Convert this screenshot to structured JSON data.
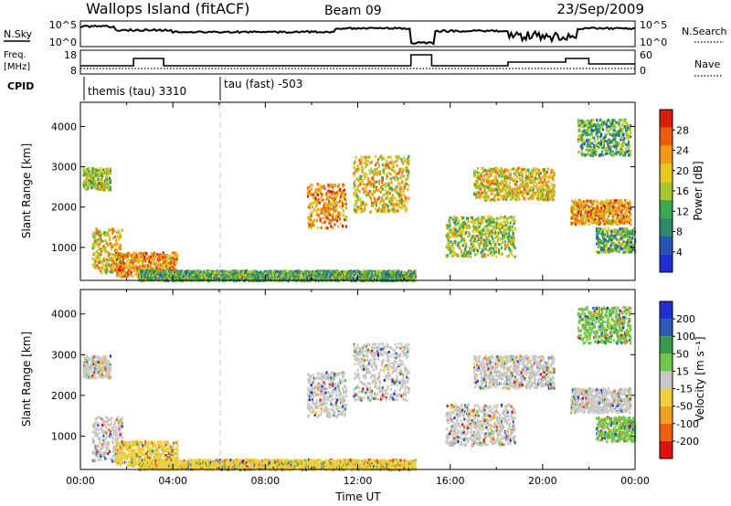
{
  "header": {
    "station": "Wallops Island (fitACF)",
    "beam": "Beam 09",
    "date": "23/Sep/2009"
  },
  "strip": {
    "nsky_label": "N.Sky",
    "nsearch_label": "N.Search",
    "noise_ticks_left": [
      "10^5",
      "10^0"
    ],
    "noise_ticks_right": [
      "10^5",
      "10^0"
    ],
    "freq_label_1": "Freq.",
    "freq_label_2": "[MHz]",
    "freq_ticks": [
      "18",
      "8"
    ],
    "nave_label": "Nave",
    "nave_ticks": [
      "60",
      "0"
    ],
    "cpid_label": "CPID",
    "cpid_modes": [
      "themis (tau) 3310",
      "tau (fast) -503"
    ]
  },
  "colors": {
    "power": [
      "#1f2fd6",
      "#2456b0",
      "#2e8a6a",
      "#3aa84e",
      "#a8c832",
      "#e8c81e",
      "#f09a18",
      "#ec5a10",
      "#d81e08"
    ],
    "velocity": [
      "#e01010",
      "#ec6010",
      "#f0a020",
      "#f0d040",
      "#c8c8c8",
      "#70c84a",
      "#3a9a4a",
      "#2a5ab4",
      "#2030d0"
    ]
  },
  "chart_data": [
    {
      "type": "heatmap",
      "quantity": "power",
      "xlabel": "",
      "ylabel": "Slant Range [km]",
      "xlim": [
        "00:00",
        "24:00"
      ],
      "ylim": [
        180,
        4600
      ],
      "y_ticks": [
        1000,
        2000,
        3000,
        4000
      ],
      "colorbar": {
        "label": "Power [dB]",
        "range": [
          0,
          32
        ],
        "ticks": [
          4,
          8,
          12,
          16,
          20,
          24,
          28
        ]
      },
      "echo_regions": [
        {
          "t_start": 0.1,
          "t_end": 1.3,
          "r_low": 2450,
          "r_high": 3000,
          "level": 16
        },
        {
          "t_start": 0.5,
          "t_end": 1.8,
          "r_low": 400,
          "r_high": 1500,
          "level": 20
        },
        {
          "t_start": 1.5,
          "t_end": 4.2,
          "r_low": 300,
          "r_high": 900,
          "level": 22
        },
        {
          "t_start": 2.5,
          "t_end": 14.5,
          "r_low": 200,
          "r_high": 450,
          "level": 10
        },
        {
          "t_start": 9.8,
          "t_end": 11.5,
          "r_low": 1500,
          "r_high": 2600,
          "level": 22
        },
        {
          "t_start": 11.8,
          "t_end": 14.2,
          "r_low": 1900,
          "r_high": 3300,
          "level": 18
        },
        {
          "t_start": 15.8,
          "t_end": 18.8,
          "r_low": 800,
          "r_high": 1800,
          "level": 16
        },
        {
          "t_start": 17.0,
          "t_end": 20.5,
          "r_low": 2200,
          "r_high": 3000,
          "level": 18
        },
        {
          "t_start": 21.2,
          "t_end": 23.8,
          "r_low": 1600,
          "r_high": 2200,
          "level": 22
        },
        {
          "t_start": 21.5,
          "t_end": 23.8,
          "r_low": 3300,
          "r_high": 4200,
          "level": 12
        },
        {
          "t_start": 22.3,
          "t_end": 24.0,
          "r_low": 900,
          "r_high": 1500,
          "level": 10
        }
      ]
    },
    {
      "type": "heatmap",
      "quantity": "velocity",
      "xlabel": "Time UT",
      "ylabel": "Slant Range [km]",
      "xlim": [
        "00:00",
        "24:00"
      ],
      "x_ticks": [
        "00:00",
        "04:00",
        "08:00",
        "12:00",
        "16:00",
        "20:00",
        "00:00"
      ],
      "ylim": [
        180,
        4600
      ],
      "y_ticks": [
        1000,
        2000,
        3000,
        4000
      ],
      "colorbar": {
        "label": "Velocity [m s⁻¹]",
        "ticks": [
          -200,
          -100,
          -50,
          -15,
          15,
          50,
          100,
          200
        ]
      },
      "echo_regions": [
        {
          "t_start": 0.1,
          "t_end": 1.3,
          "r_low": 2450,
          "r_high": 3000,
          "level": 0
        },
        {
          "t_start": 0.5,
          "t_end": 1.8,
          "r_low": 400,
          "r_high": 1500,
          "level": 0
        },
        {
          "t_start": 1.5,
          "t_end": 4.2,
          "r_low": 300,
          "r_high": 900,
          "level": 20
        },
        {
          "t_start": 2.5,
          "t_end": 14.5,
          "r_low": 200,
          "r_high": 450,
          "level": 20
        },
        {
          "t_start": 9.8,
          "t_end": 11.5,
          "r_low": 1500,
          "r_high": 2600,
          "level": 0
        },
        {
          "t_start": 11.8,
          "t_end": 14.2,
          "r_low": 1900,
          "r_high": 3300,
          "level": 0
        },
        {
          "t_start": 15.8,
          "t_end": 18.8,
          "r_low": 800,
          "r_high": 1800,
          "level": 0
        },
        {
          "t_start": 17.0,
          "t_end": 20.5,
          "r_low": 2200,
          "r_high": 3000,
          "level": 0
        },
        {
          "t_start": 21.2,
          "t_end": 23.8,
          "r_low": 1600,
          "r_high": 2200,
          "level": 0
        },
        {
          "t_start": 21.5,
          "t_end": 23.8,
          "r_low": 3300,
          "r_high": 4200,
          "level": 40
        },
        {
          "t_start": 22.3,
          "t_end": 24.0,
          "r_low": 900,
          "r_high": 1500,
          "level": 40
        }
      ]
    }
  ]
}
